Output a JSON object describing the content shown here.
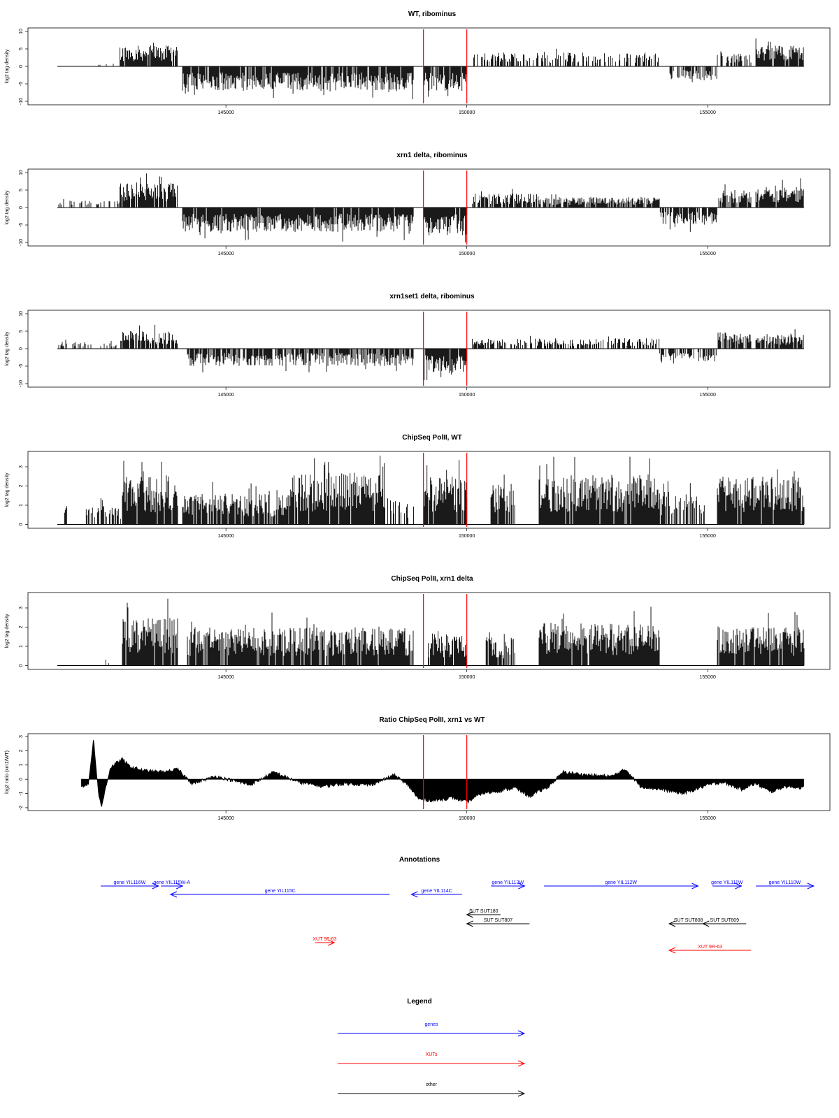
{
  "chart_data": [
    {
      "type": "bar",
      "title": "WT, ribominus",
      "ylabel": "log2 tag density",
      "xlim": [
        141500,
        157000
      ],
      "ylim": [
        -11,
        11
      ],
      "yticks": [
        -10,
        -5,
        0,
        5,
        10
      ],
      "xticks": [
        145000,
        150000,
        155000
      ],
      "markers": [
        149100,
        150000
      ],
      "segments": [
        {
          "from": 141500,
          "to": 142800,
          "sign": 1,
          "amp": 1,
          "density": 0.04
        },
        {
          "from": 142800,
          "to": 144000,
          "sign": 1,
          "amp": 6,
          "density": 0.95
        },
        {
          "from": 144100,
          "to": 148900,
          "sign": -1,
          "amp": 7,
          "density": 0.9
        },
        {
          "from": 149100,
          "to": 150000,
          "sign": -1,
          "amp": 7,
          "density": 0.9
        },
        {
          "from": 150100,
          "to": 154000,
          "sign": 1,
          "amp": 4,
          "density": 0.45
        },
        {
          "from": 154200,
          "to": 155200,
          "sign": -1,
          "amp": 4,
          "density": 0.6
        },
        {
          "from": 155200,
          "to": 155900,
          "sign": 1,
          "amp": 4,
          "density": 0.6
        },
        {
          "from": 156000,
          "to": 157000,
          "sign": 1,
          "amp": 6,
          "density": 0.95
        }
      ]
    },
    {
      "type": "bar",
      "title": "xrn1 delta, ribominus",
      "ylabel": "log2 tag density",
      "xlim": [
        141500,
        157000
      ],
      "ylim": [
        -11,
        11
      ],
      "yticks": [
        -10,
        -5,
        0,
        5,
        10
      ],
      "xticks": [
        145000,
        150000,
        155000
      ],
      "markers": [
        149100,
        150000
      ],
      "segments": [
        {
          "from": 141500,
          "to": 142800,
          "sign": 1,
          "amp": 2,
          "density": 0.35
        },
        {
          "from": 142800,
          "to": 144000,
          "sign": 1,
          "amp": 7,
          "density": 0.95
        },
        {
          "from": 144100,
          "to": 148900,
          "sign": -1,
          "amp": 7,
          "density": 0.95
        },
        {
          "from": 149100,
          "to": 150000,
          "sign": -1,
          "amp": 8,
          "density": 0.95
        },
        {
          "from": 150100,
          "to": 151500,
          "sign": 1,
          "amp": 4,
          "density": 0.7
        },
        {
          "from": 151500,
          "to": 154000,
          "sign": 1,
          "amp": 3,
          "density": 0.8
        },
        {
          "from": 154000,
          "to": 155200,
          "sign": -1,
          "amp": 5,
          "density": 0.8
        },
        {
          "from": 155200,
          "to": 155900,
          "sign": 1,
          "amp": 5,
          "density": 0.8
        },
        {
          "from": 156000,
          "to": 157000,
          "sign": 1,
          "amp": 6,
          "density": 0.95
        }
      ]
    },
    {
      "type": "bar",
      "title": "xrn1set1 delta, ribominus",
      "ylabel": "log2 tag density",
      "xlim": [
        141500,
        157000
      ],
      "ylim": [
        -11,
        11
      ],
      "yticks": [
        -10,
        -5,
        0,
        5,
        10
      ],
      "xticks": [
        145000,
        150000,
        155000
      ],
      "markers": [
        149100,
        150000
      ],
      "segments": [
        {
          "from": 141500,
          "to": 142800,
          "sign": 1,
          "amp": 2,
          "density": 0.25
        },
        {
          "from": 142800,
          "to": 144000,
          "sign": 1,
          "amp": 5,
          "density": 0.9
        },
        {
          "from": 144200,
          "to": 148900,
          "sign": -1,
          "amp": 5,
          "density": 0.8
        },
        {
          "from": 149100,
          "to": 150000,
          "sign": -1,
          "amp": 7,
          "density": 0.9
        },
        {
          "from": 150100,
          "to": 154000,
          "sign": 1,
          "amp": 3,
          "density": 0.5
        },
        {
          "from": 154000,
          "to": 155200,
          "sign": -1,
          "amp": 4,
          "density": 0.6
        },
        {
          "from": 155200,
          "to": 155900,
          "sign": 1,
          "amp": 5,
          "density": 0.7
        },
        {
          "from": 156000,
          "to": 157000,
          "sign": 1,
          "amp": 4,
          "density": 0.85
        }
      ]
    },
    {
      "type": "bar",
      "title": "ChipSeq PolII, WT",
      "ylabel": "log2 tag density",
      "xlim": [
        141500,
        157000
      ],
      "ylim": [
        -0.2,
        3.8
      ],
      "yticks": [
        0,
        1,
        2,
        3
      ],
      "xticks": [
        145000,
        150000,
        155000
      ],
      "markers": [
        149100,
        150000
      ],
      "segments": [
        {
          "from": 141650,
          "to": 141700,
          "sign": 1,
          "amp": 1,
          "density": 1
        },
        {
          "from": 142100,
          "to": 142850,
          "sign": 1,
          "amp": 1,
          "density": 0.6
        },
        {
          "from": 142850,
          "to": 144000,
          "sign": 1,
          "amp": 2.5,
          "density": 0.95
        },
        {
          "from": 144100,
          "to": 146300,
          "sign": 1,
          "amp": 1.6,
          "density": 0.85
        },
        {
          "from": 146300,
          "to": 148300,
          "sign": 1,
          "amp": 2.7,
          "density": 0.95
        },
        {
          "from": 148300,
          "to": 148900,
          "sign": 1,
          "amp": 1.3,
          "density": 0.4
        },
        {
          "from": 149100,
          "to": 150000,
          "sign": 1,
          "amp": 2.5,
          "density": 0.95
        },
        {
          "from": 150500,
          "to": 151000,
          "sign": 1,
          "amp": 2.2,
          "density": 0.8
        },
        {
          "from": 151500,
          "to": 154000,
          "sign": 1,
          "amp": 2.6,
          "density": 0.95
        },
        {
          "from": 154000,
          "to": 155000,
          "sign": 1,
          "amp": 1.8,
          "density": 0.6
        },
        {
          "from": 155200,
          "to": 157000,
          "sign": 1,
          "amp": 2.5,
          "density": 0.95
        }
      ]
    },
    {
      "type": "bar",
      "title": "ChipSeq PolII, xrn1 delta",
      "ylabel": "log2 tag density",
      "xlim": [
        141500,
        157000
      ],
      "ylim": [
        -0.2,
        3.8
      ],
      "yticks": [
        0,
        1,
        2,
        3
      ],
      "xticks": [
        145000,
        150000,
        155000
      ],
      "markers": [
        149100,
        150000
      ],
      "segments": [
        {
          "from": 142100,
          "to": 142850,
          "sign": 1,
          "amp": 0.4,
          "density": 0.1
        },
        {
          "from": 142850,
          "to": 144000,
          "sign": 1,
          "amp": 2.5,
          "density": 0.95
        },
        {
          "from": 144200,
          "to": 148900,
          "sign": 1,
          "amp": 2.0,
          "density": 0.9
        },
        {
          "from": 149200,
          "to": 150000,
          "sign": 1,
          "amp": 1.7,
          "density": 0.9
        },
        {
          "from": 150400,
          "to": 151000,
          "sign": 1,
          "amp": 1.5,
          "density": 0.7
        },
        {
          "from": 151500,
          "to": 154000,
          "sign": 1,
          "amp": 2.2,
          "density": 0.95
        },
        {
          "from": 155200,
          "to": 157000,
          "sign": 1,
          "amp": 2.0,
          "density": 0.95
        }
      ]
    },
    {
      "type": "area",
      "title": "Ratio ChipSeq PolII, xrn1 vs WT",
      "ylabel": "log2 ratio (xrn1/WT)",
      "xlim": [
        141500,
        157000
      ],
      "ylim": [
        -2.2,
        3.2
      ],
      "yticks": [
        -2,
        -1,
        0,
        1,
        2,
        3
      ],
      "xticks": [
        145000,
        150000,
        155000
      ],
      "markers": [
        149100,
        150000
      ],
      "x": [
        142000,
        142150,
        142250,
        142350,
        142420,
        142500,
        142600,
        142750,
        142850,
        143000,
        143300,
        143700,
        144000,
        144300,
        144800,
        145500,
        146000,
        146500,
        147000,
        147500,
        148000,
        148500,
        148800,
        149000,
        149300,
        149700,
        150000,
        150300,
        150700,
        151000,
        151300,
        151700,
        152000,
        152500,
        153000,
        153300,
        153600,
        154000,
        154500,
        155000,
        155300,
        155700,
        156000,
        156300,
        156600,
        157000
      ],
      "values": [
        -0.5,
        -0.3,
        2.9,
        -0.9,
        -2.0,
        -0.6,
        0.8,
        1.2,
        1.4,
        0.9,
        0.6,
        0.5,
        0.7,
        -0.3,
        0.2,
        -0.4,
        0.5,
        -0.2,
        -0.5,
        -0.3,
        -0.4,
        0.3,
        -0.5,
        -1.4,
        -1.5,
        -1.3,
        -1.6,
        -1.0,
        -0.8,
        -0.6,
        -1.2,
        -0.5,
        0.5,
        0.3,
        0.2,
        0.7,
        -0.5,
        -0.7,
        -1.0,
        -0.4,
        -0.2,
        -0.7,
        -0.3,
        -0.9,
        -0.5,
        -0.6
      ]
    }
  ],
  "annotations": {
    "title": "Annotations",
    "xlim": [
      141500,
      157000
    ],
    "features": [
      {
        "label": "gene YIL116W",
        "kind": "gene",
        "start": 142400,
        "end": 143600,
        "strand": "+",
        "row": 0
      },
      {
        "label": "gene YIL115W-A",
        "kind": "gene",
        "start": 143650,
        "end": 144100,
        "strand": "+",
        "row": 0
      },
      {
        "label": "gene YIL115C",
        "kind": "gene",
        "start": 143850,
        "end": 148400,
        "strand": "-",
        "row": 1
      },
      {
        "label": "gene YIL114C",
        "kind": "gene",
        "start": 148850,
        "end": 149900,
        "strand": "-",
        "row": 1
      },
      {
        "label": "gene YIL113W",
        "kind": "gene",
        "start": 150500,
        "end": 151200,
        "strand": "+",
        "row": 0
      },
      {
        "label": "gene YIL112W",
        "kind": "gene",
        "start": 151600,
        "end": 154800,
        "strand": "+",
        "row": 0
      },
      {
        "label": "gene YIL111W",
        "kind": "gene",
        "start": 155100,
        "end": 155700,
        "strand": "+",
        "row": 0
      },
      {
        "label": "gene YIL110W",
        "kind": "gene",
        "start": 156000,
        "end": 157200,
        "strand": "+",
        "row": 0
      },
      {
        "label": "SUT SUT180",
        "kind": "other",
        "start": 150000,
        "end": 150700,
        "strand": "-",
        "row": 2
      },
      {
        "label": "SUT SUT807",
        "kind": "other",
        "start": 150000,
        "end": 151300,
        "strand": "-",
        "row": 3
      },
      {
        "label": "SUT SUT808",
        "kind": "other",
        "start": 154200,
        "end": 155000,
        "strand": "-",
        "row": 3
      },
      {
        "label": "SUT SUT809",
        "kind": "other",
        "start": 154900,
        "end": 155800,
        "strand": "-",
        "row": 3
      },
      {
        "label": "XUT 9F-63",
        "kind": "xut",
        "start": 146850,
        "end": 147250,
        "strand": "+",
        "row": 4
      },
      {
        "label": "XUT 9R-63",
        "kind": "xut",
        "start": 154200,
        "end": 155900,
        "strand": "-",
        "row": 5
      }
    ]
  },
  "legend": {
    "title": "Legend",
    "items": [
      {
        "label": "genes",
        "kind": "gene"
      },
      {
        "label": "XUTs",
        "kind": "xut"
      },
      {
        "label": "other",
        "kind": "other"
      }
    ]
  },
  "colors": {
    "gene": "#0000ff",
    "xut": "#ff0000",
    "other": "#000000",
    "marker": "#ff0000",
    "bars": "#000000"
  }
}
